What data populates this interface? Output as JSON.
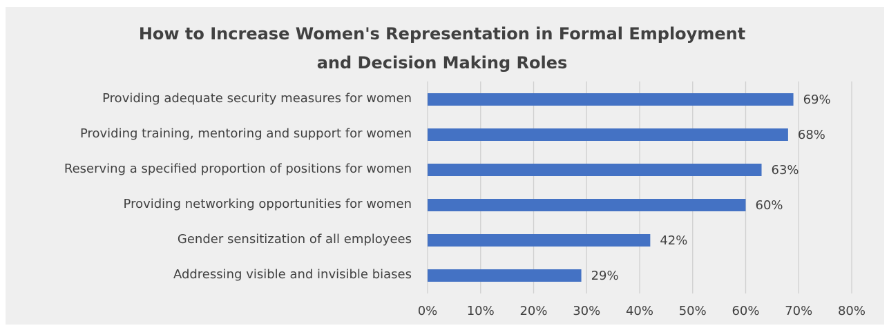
{
  "chart_data": {
    "type": "bar",
    "orientation": "horizontal",
    "title": [
      "How to Increase Women's Representation in Formal Employment",
      "and Decision Making Roles"
    ],
    "categories": [
      "Providing adequate security measures for women",
      "Providing training, mentoring and support for women",
      "Reserving a specified proportion of positions for women",
      "Providing networking opportunities for women",
      "Gender sensitization of all employees",
      "Addressing visible and invisible biases"
    ],
    "values": [
      69,
      68,
      63,
      60,
      42,
      29
    ],
    "value_labels": [
      "69%",
      "68%",
      "63%",
      "60%",
      "42%",
      "29%"
    ],
    "color": "#4472c4",
    "xlim": [
      0,
      80
    ],
    "xticks": [
      {
        "value": 0,
        "label": "0%"
      },
      {
        "value": 10,
        "label": "10%"
      },
      {
        "value": 20,
        "label": "20%"
      },
      {
        "value": 30,
        "label": "30%"
      },
      {
        "value": 40,
        "label": "40%"
      },
      {
        "value": 50,
        "label": "50%"
      },
      {
        "value": 60,
        "label": "60%"
      },
      {
        "value": 70,
        "label": "70%"
      },
      {
        "value": 80,
        "label": "80%"
      }
    ],
    "grid": true
  }
}
